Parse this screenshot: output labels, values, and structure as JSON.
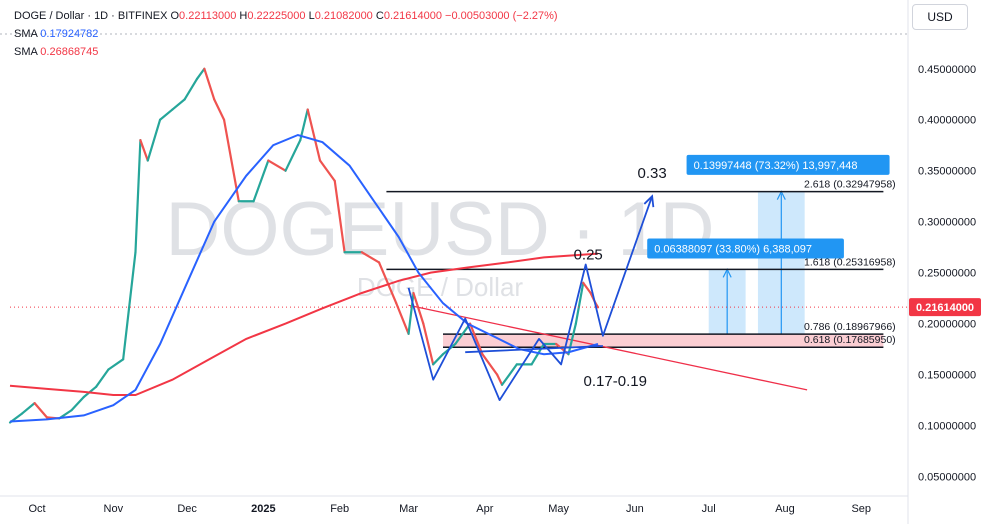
{
  "legend": {
    "symbol": "DOGE / Dollar · 1D · BITFINEX",
    "open_label": "O",
    "open": "0.22113000",
    "high_label": "H",
    "high": "0.22225000",
    "low_label": "L",
    "low": "0.21082000",
    "close_label": "C",
    "close": "0.21614000",
    "change": "−0.00503000 (−2.27%)",
    "sma1_label": "SMA",
    "sma1": "0.17924782",
    "sma2_label": "SMA",
    "sma2": "0.26868745"
  },
  "currency_button": "USD",
  "watermark": {
    "main": "DOGEUSD · 1D",
    "sub": "DOGE / Dollar"
  },
  "colors": {
    "up": "#26a69a",
    "down": "#ef5350",
    "sma_fast": "#2962ff",
    "sma_slow": "#f23645",
    "pattern": "#1e4fd8",
    "target_box": "#2196f3",
    "zone": "#f7a5ae",
    "last_price": "#f23645"
  },
  "chart_data": {
    "type": "candlestick",
    "symbol": "DOGE / Dollar",
    "interval": "1D",
    "exchange": "BITFINEX",
    "yaxis_ticks": [
      0.05,
      0.1,
      0.15,
      0.2,
      0.25,
      0.3,
      0.35,
      0.4,
      0.45
    ],
    "yaxis_tick_labels": [
      "0.05000000",
      "0.10000000",
      "0.15000000",
      "0.20000000",
      "0.25000000",
      "0.30000000",
      "0.35000000",
      "0.40000000",
      "0.45000000"
    ],
    "ylim": [
      0.0309,
      0.4841
    ],
    "x_tick_labels": [
      {
        "label": "Oct",
        "date": "2024-10-01"
      },
      {
        "label": "Nov",
        "date": "2024-11-01"
      },
      {
        "label": "Dec",
        "date": "2024-12-01"
      },
      {
        "label": "2025",
        "date": "2025-01-01",
        "bold": true
      },
      {
        "label": "Feb",
        "date": "2025-02-01"
      },
      {
        "label": "Mar",
        "date": "2025-03-01"
      },
      {
        "label": "Apr",
        "date": "2025-04-01"
      },
      {
        "label": "May",
        "date": "2025-05-01"
      },
      {
        "label": "Jun",
        "date": "2025-06-01"
      },
      {
        "label": "Jul",
        "date": "2025-07-01"
      },
      {
        "label": "Aug",
        "date": "2025-08-01"
      },
      {
        "label": "Sep",
        "date": "2025-09-01"
      }
    ],
    "last_price": "0.21614000",
    "price_path": [
      [
        "2024-09-20",
        0.103
      ],
      [
        "2024-09-25",
        0.112
      ],
      [
        "2024-09-30",
        0.122
      ],
      [
        "2024-10-05",
        0.108
      ],
      [
        "2024-10-10",
        0.107
      ],
      [
        "2024-10-15",
        0.115
      ],
      [
        "2024-10-20",
        0.128
      ],
      [
        "2024-10-25",
        0.138
      ],
      [
        "2024-10-30",
        0.155
      ],
      [
        "2024-11-05",
        0.165
      ],
      [
        "2024-11-10",
        0.27
      ],
      [
        "2024-11-12",
        0.38
      ],
      [
        "2024-11-15",
        0.36
      ],
      [
        "2024-11-20",
        0.4
      ],
      [
        "2024-11-25",
        0.41
      ],
      [
        "2024-11-30",
        0.42
      ],
      [
        "2024-12-05",
        0.44
      ],
      [
        "2024-12-08",
        0.45
      ],
      [
        "2024-12-12",
        0.42
      ],
      [
        "2024-12-16",
        0.4
      ],
      [
        "2024-12-22",
        0.32
      ],
      [
        "2024-12-28",
        0.32
      ],
      [
        "2025-01-03",
        0.36
      ],
      [
        "2025-01-10",
        0.35
      ],
      [
        "2025-01-16",
        0.38
      ],
      [
        "2025-01-19",
        0.41
      ],
      [
        "2025-01-24",
        0.36
      ],
      [
        "2025-01-30",
        0.34
      ],
      [
        "2025-02-03",
        0.27
      ],
      [
        "2025-02-10",
        0.27
      ],
      [
        "2025-02-17",
        0.26
      ],
      [
        "2025-02-24",
        0.22
      ],
      [
        "2025-03-01",
        0.19
      ],
      [
        "2025-03-03",
        0.23
      ],
      [
        "2025-03-07",
        0.2
      ],
      [
        "2025-03-11",
        0.16
      ],
      [
        "2025-03-15",
        0.17
      ],
      [
        "2025-03-20",
        0.18
      ],
      [
        "2025-03-26",
        0.2
      ],
      [
        "2025-03-31",
        0.17
      ],
      [
        "2025-04-06",
        0.15
      ],
      [
        "2025-04-08",
        0.14
      ],
      [
        "2025-04-14",
        0.16
      ],
      [
        "2025-04-20",
        0.16
      ],
      [
        "2025-04-25",
        0.18
      ],
      [
        "2025-04-30",
        0.18
      ],
      [
        "2025-05-05",
        0.17
      ],
      [
        "2025-05-08",
        0.2
      ],
      [
        "2025-05-11",
        0.24
      ],
      [
        "2025-05-14",
        0.23
      ],
      [
        "2025-05-16",
        0.22
      ],
      [
        "2025-05-17",
        0.216
      ]
    ],
    "sma_fast": {
      "name": "SMA",
      "value": "0.17924782",
      "points": [
        [
          "2024-09-20",
          0.104
        ],
        [
          "2024-10-05",
          0.106
        ],
        [
          "2024-10-20",
          0.11
        ],
        [
          "2024-11-01",
          0.12
        ],
        [
          "2024-11-10",
          0.135
        ],
        [
          "2024-11-20",
          0.18
        ],
        [
          "2024-12-01",
          0.24
        ],
        [
          "2024-12-12",
          0.3
        ],
        [
          "2024-12-25",
          0.345
        ],
        [
          "2025-01-05",
          0.375
        ],
        [
          "2025-01-15",
          0.385
        ],
        [
          "2025-01-25",
          0.378
        ],
        [
          "2025-02-05",
          0.355
        ],
        [
          "2025-02-15",
          0.32
        ],
        [
          "2025-02-25",
          0.285
        ],
        [
          "2025-03-05",
          0.25
        ],
        [
          "2025-03-15",
          0.22
        ],
        [
          "2025-03-25",
          0.2
        ],
        [
          "2025-04-05",
          0.187
        ],
        [
          "2025-04-15",
          0.175
        ],
        [
          "2025-04-25",
          0.17
        ],
        [
          "2025-05-05",
          0.172
        ],
        [
          "2025-05-17",
          0.18
        ]
      ]
    },
    "sma_slow": {
      "name": "SMA",
      "value": "0.26868745",
      "points": [
        [
          "2024-09-20",
          0.139
        ],
        [
          "2024-10-05",
          0.136
        ],
        [
          "2024-10-20",
          0.133
        ],
        [
          "2024-11-01",
          0.13
        ],
        [
          "2024-11-10",
          0.13
        ],
        [
          "2024-11-25",
          0.145
        ],
        [
          "2024-12-10",
          0.165
        ],
        [
          "2024-12-25",
          0.185
        ],
        [
          "2025-01-10",
          0.2
        ],
        [
          "2025-01-25",
          0.215
        ],
        [
          "2025-02-10",
          0.23
        ],
        [
          "2025-02-25",
          0.242
        ],
        [
          "2025-03-10",
          0.25
        ],
        [
          "2025-03-25",
          0.255
        ],
        [
          "2025-04-10",
          0.26
        ],
        [
          "2025-04-25",
          0.265
        ],
        [
          "2025-05-17",
          0.2687
        ]
      ]
    },
    "levels": [
      {
        "price": 0.32947958,
        "label": "2.618 (0.32947958)",
        "x_start": "2025-02-20",
        "x_end": "2025-09-10"
      },
      {
        "price": 0.25316958,
        "label": "1.618 (0.25316958)",
        "x_start": "2025-02-20",
        "x_end": "2025-09-10"
      },
      {
        "price": 0.18967966,
        "label": "0.786 (0.18967966)",
        "x_start": "2025-03-15",
        "x_end": "2025-09-10"
      },
      {
        "price": 0.1768595,
        "label": "0.618 (0.17685950)",
        "x_start": "2025-03-15",
        "x_end": "2025-09-10"
      }
    ],
    "support_zone": {
      "from": 0.1769,
      "to": 0.1897,
      "x_start": "2025-03-15",
      "x_end": "2025-09-10"
    },
    "trendline": [
      [
        "2025-03-01",
        0.218
      ],
      [
        "2025-08-10",
        0.135
      ]
    ],
    "pattern_path": [
      [
        "2025-03-01",
        0.235
      ],
      [
        "2025-03-11",
        0.145
      ],
      [
        "2025-03-24",
        0.205
      ],
      [
        "2025-04-07",
        0.125
      ],
      [
        "2025-04-23",
        0.185
      ],
      [
        "2025-05-02",
        0.16
      ],
      [
        "2025-05-12",
        0.258
      ],
      [
        "2025-05-19",
        0.188
      ],
      [
        "2025-06-08",
        0.325
      ]
    ],
    "neck_segment": [
      [
        "2025-03-24",
        0.172
      ],
      [
        "2025-05-19",
        0.178
      ]
    ],
    "projections": [
      {
        "label": "0.06388097 (33.80%) 6,388,097",
        "from": 0.1897,
        "to": 0.2532,
        "x_from": "2025-07-01",
        "x_to": "2025-07-16",
        "label_date": "2025-06-06",
        "label_price": 0.2737
      },
      {
        "label": "0.13997448 (73.32%) 13,997,448",
        "from": 0.1897,
        "to": 0.3295,
        "x_from": "2025-07-21",
        "x_to": "2025-08-09",
        "label_date": "2025-06-22",
        "label_price": 0.3557
      }
    ],
    "annotations": [
      {
        "text": "0.33",
        "date": "2025-06-08",
        "price": 0.343
      },
      {
        "text": "0.25",
        "date": "2025-05-13",
        "price": 0.263
      },
      {
        "text": "0.17-0.19",
        "date": "2025-05-24",
        "price": 0.139
      }
    ]
  }
}
